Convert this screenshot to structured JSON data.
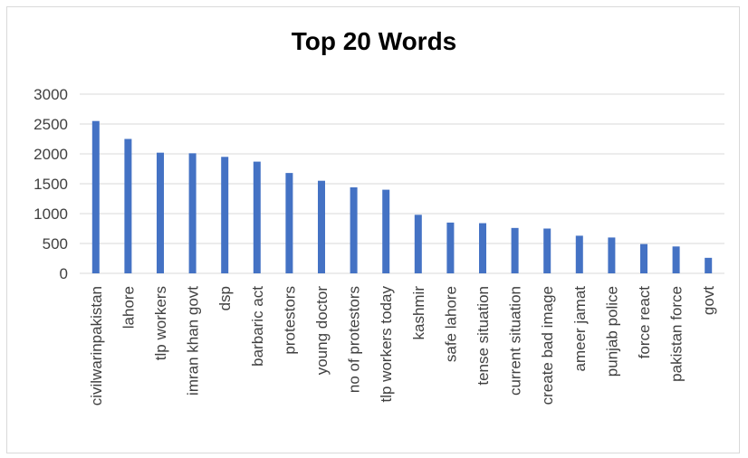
{
  "chart_data": {
    "type": "bar",
    "title": "Top 20 Words",
    "xlabel": "",
    "ylabel": "",
    "ylim": [
      0,
      3000
    ],
    "yticks": [
      "0",
      "500",
      "1000",
      "1500",
      "2000",
      "2500",
      "3000"
    ],
    "grid": true,
    "legend": "none",
    "bar_color": "#4472c4",
    "categories": [
      "civilwarinpakistan",
      "lahore",
      "tlp workers",
      "imran khan govt",
      "dsp",
      "barbaric act",
      "protestors",
      "young doctor",
      "no of protestors",
      "tlp workers today",
      "kashmir",
      "safe lahore",
      "tense situation",
      "current situation",
      "create bad image",
      "ameer jamat",
      "punjab police",
      "force react",
      "pakistan force",
      "govt"
    ],
    "values": [
      2550,
      2250,
      2020,
      2010,
      1950,
      1870,
      1680,
      1550,
      1440,
      1400,
      980,
      850,
      840,
      760,
      750,
      630,
      600,
      490,
      450,
      260
    ]
  }
}
